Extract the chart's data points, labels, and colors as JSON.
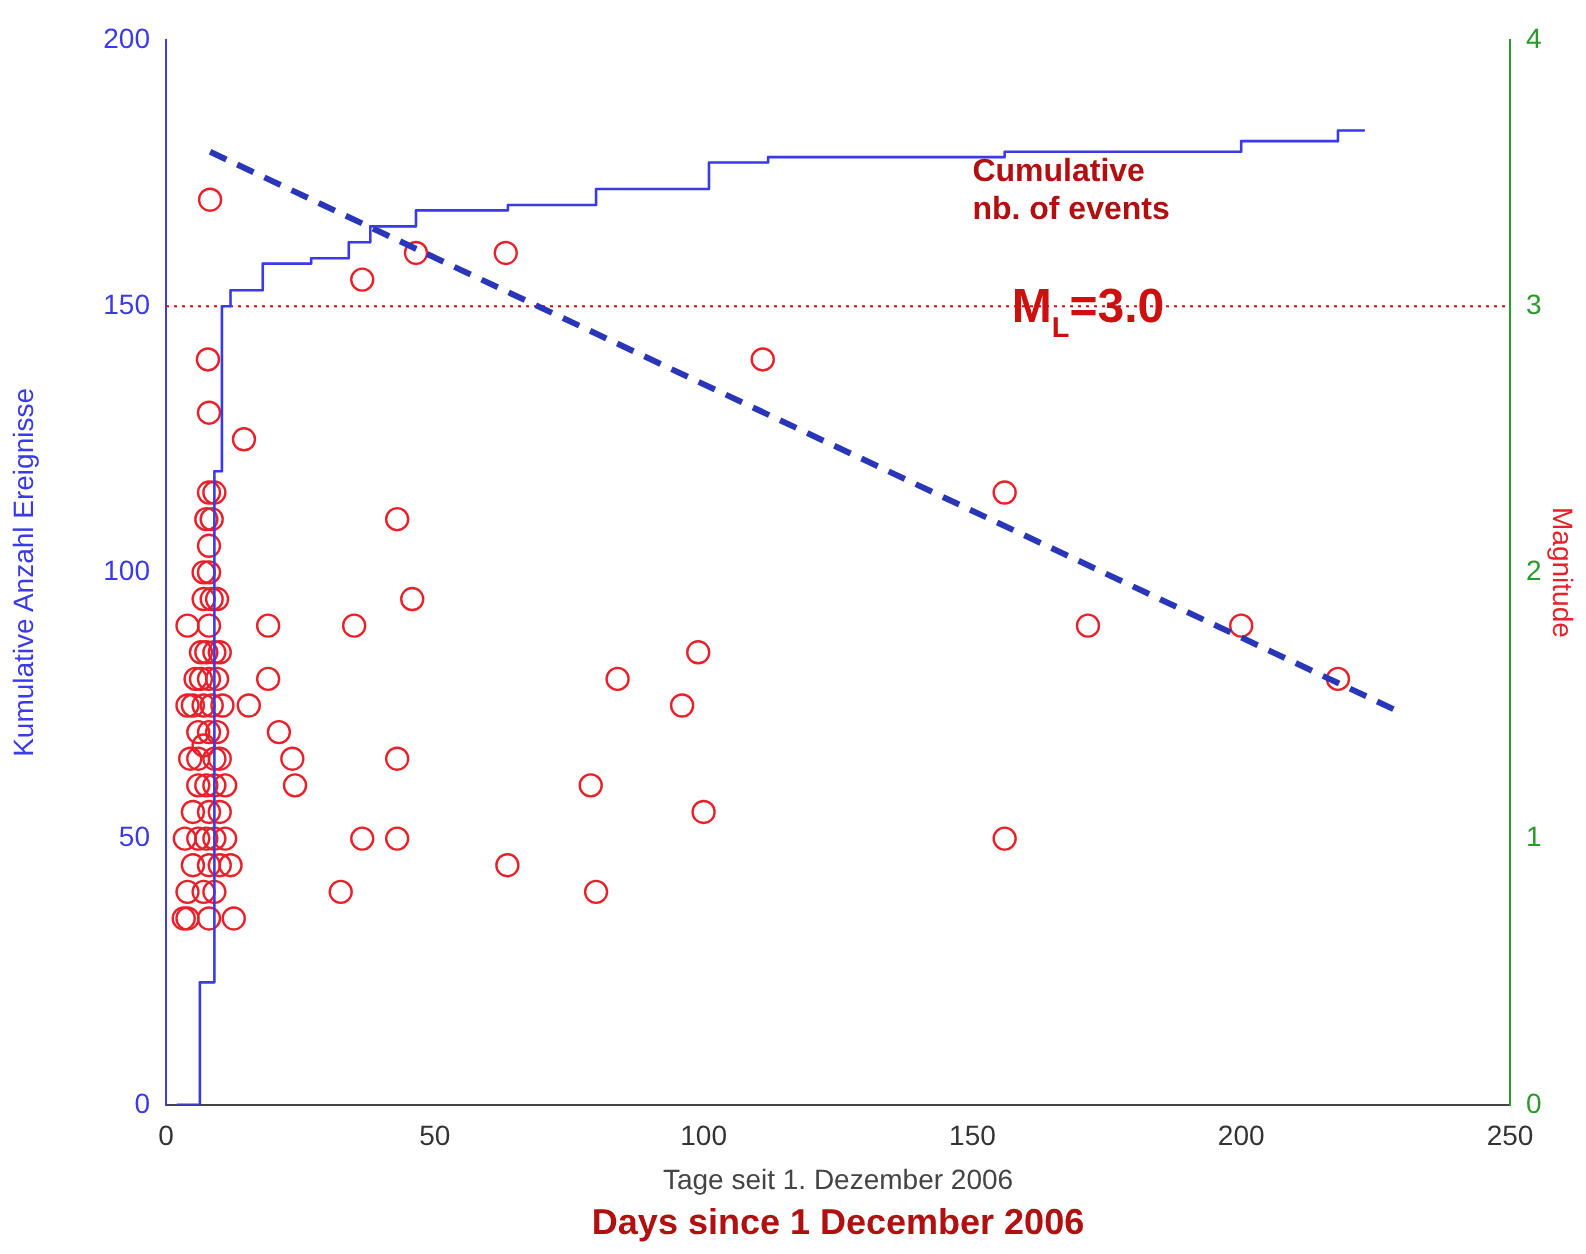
{
  "chart_data": {
    "type": "scatter",
    "xlabel": "Tage seit 1. Dezember 2006",
    "ylabel": "Kumulative Anzahl Ereignisse",
    "y2label": "Magnitude",
    "xlim": [
      0,
      250
    ],
    "xticks": [
      0,
      50,
      100,
      150,
      200,
      250
    ],
    "ylim": [
      0,
      200
    ],
    "yticks": [
      0,
      50,
      100,
      150,
      200
    ],
    "y2lim": [
      0,
      4
    ],
    "y2ticks": [
      0,
      1,
      2,
      3,
      4
    ],
    "grid": false,
    "series": [
      {
        "type": "step",
        "color": "#3a3ae8",
        "axis": "y",
        "marker": "none",
        "line_style": "solid",
        "x": [
          2,
          6.3,
          9,
          10.4,
          12,
          18,
          27,
          34,
          38,
          46.5,
          63.6,
          80,
          101,
          112,
          156,
          200,
          218,
          223
        ],
        "values": [
          0,
          23,
          119,
          150,
          153,
          158,
          159,
          162,
          165,
          168,
          169,
          172,
          177,
          178,
          179,
          181,
          183,
          183
        ]
      },
      {
        "type": "line",
        "color": "#2a36b8",
        "axis": "y",
        "marker": "none",
        "line_style": "dashed",
        "x": [
          8.2,
          229
        ],
        "values": [
          179,
          74
        ]
      },
      {
        "type": "scatter",
        "color": "#e8202a",
        "axis": "y2",
        "marker": "circle",
        "x": [
          8.2,
          36.5,
          46.5,
          63.2,
          111,
          156,
          7.8,
          8,
          14.5,
          43,
          45.8,
          35,
          19,
          19,
          15.4,
          21,
          23.5,
          24,
          43,
          84,
          99,
          96,
          79,
          36.5,
          43,
          32.5,
          63.5,
          80,
          100,
          171.5,
          200,
          218,
          156,
          12.6,
          3.3,
          8,
          9,
          7.5,
          8.5,
          8,
          8,
          7,
          9.5,
          8,
          4,
          6.5,
          7.5,
          9,
          10,
          8,
          6.5,
          9.5,
          5,
          7,
          8.5,
          10.5,
          4,
          6,
          8,
          9.5,
          7,
          9,
          4.5,
          6,
          7.5,
          9,
          11,
          5,
          8,
          10,
          3.5,
          6,
          7.5,
          9,
          11,
          5,
          8,
          10,
          12,
          4,
          7,
          9,
          4,
          8,
          6,
          10,
          5.5,
          8.5,
          7
        ],
        "values": [
          3.4,
          3.1,
          3.2,
          3.2,
          2.8,
          2.3,
          2.8,
          2.6,
          2.5,
          2.2,
          1.9,
          1.8,
          1.8,
          1.6,
          1.5,
          1.4,
          1.3,
          1.2,
          1.3,
          1.6,
          1.7,
          1.5,
          1.2,
          1.0,
          1.0,
          0.8,
          0.9,
          0.8,
          1.1,
          1.8,
          1.8,
          1.6,
          1.0,
          0.7,
          0.7,
          2.3,
          2.3,
          2.2,
          2.2,
          2.1,
          2.0,
          1.9,
          1.9,
          1.8,
          1.8,
          1.7,
          1.7,
          1.7,
          1.7,
          1.6,
          1.6,
          1.6,
          1.5,
          1.5,
          1.5,
          1.5,
          1.5,
          1.4,
          1.4,
          1.4,
          1.35,
          1.3,
          1.3,
          1.2,
          1.2,
          1.2,
          1.2,
          1.1,
          1.1,
          1.1,
          1.0,
          1.0,
          1.0,
          1.0,
          1.0,
          0.9,
          0.9,
          0.9,
          0.9,
          0.8,
          0.8,
          0.8,
          0.7,
          0.7,
          1.3,
          1.3,
          1.6,
          1.9,
          2.0
        ]
      }
    ],
    "ref_lines": [
      {
        "axis": "y2",
        "value": 3,
        "label": "M$_{L}$=3.0",
        "color": "#cc1010",
        "line_style": "dotted"
      }
    ],
    "annotations": [
      "Cumulative\nnb. of events",
      "Days since 1 December 2006"
    ]
  }
}
